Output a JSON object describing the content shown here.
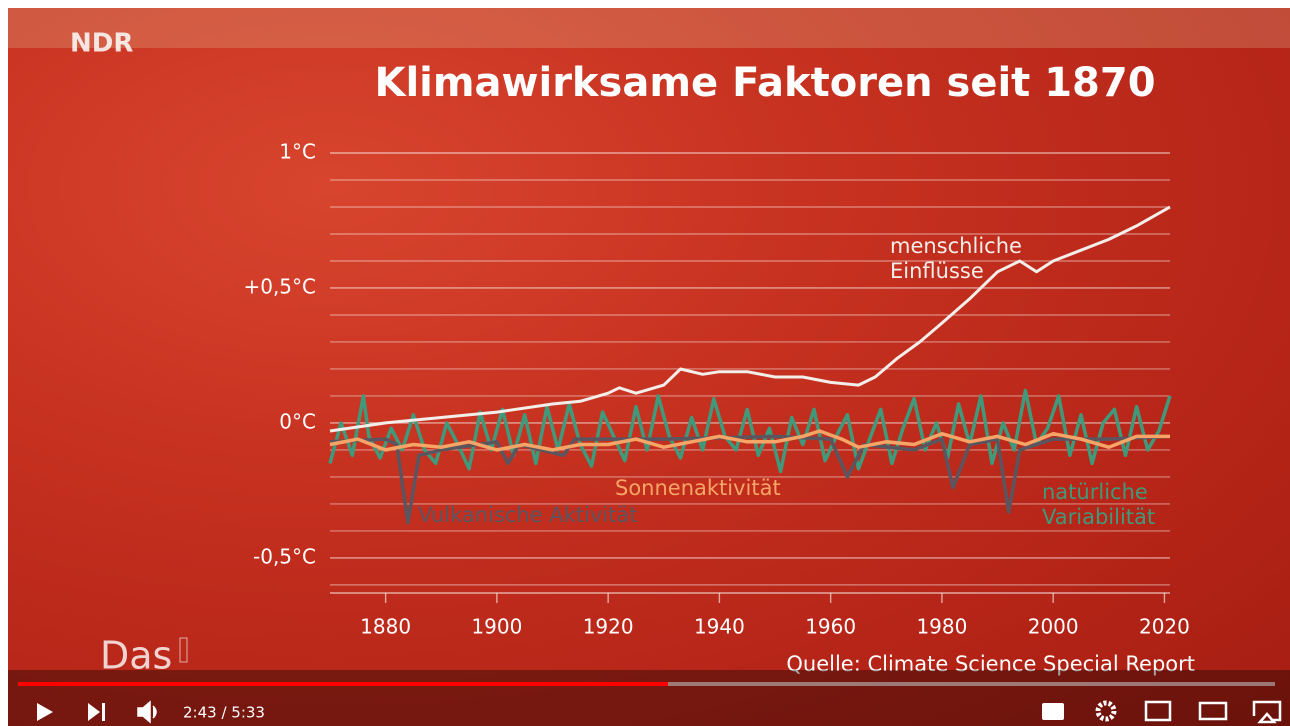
{
  "chart_data": {
    "type": "line",
    "title": "Klimawirksame Faktoren seit 1870",
    "source": "Quelle: Climate Science Special Report",
    "xlim": [
      1870,
      2021
    ],
    "xticks": [
      1880,
      1900,
      1920,
      1940,
      1960,
      1980,
      2000,
      2020
    ],
    "ylim": [
      -0.63,
      1.0
    ],
    "yticks": [
      {
        "value": -0.5,
        "label": "-0,5°C"
      },
      {
        "value": 0,
        "label": "0°C"
      },
      {
        "value": 0.5,
        "label": "+0,5°C"
      },
      {
        "value": 1,
        "label": "1°C"
      }
    ],
    "minor_yticks": [
      -0.6,
      -0.4,
      -0.3,
      -0.2,
      -0.1,
      0.1,
      0.2,
      0.3,
      0.4,
      0.6,
      0.7,
      0.8,
      0.9
    ],
    "grid": true,
    "series": [
      {
        "name": "natürliche\nVariabilität",
        "color": "#3f9a7c",
        "x": [
          1870,
          1872,
          1874,
          1876,
          1877,
          1879,
          1881,
          1883,
          1885,
          1887,
          1889,
          1891,
          1893,
          1895,
          1897,
          1899,
          1901,
          1903,
          1905,
          1907,
          1909,
          1911,
          1913,
          1915,
          1917,
          1919,
          1921,
          1923,
          1925,
          1927,
          1929,
          1931,
          1933,
          1935,
          1937,
          1939,
          1941,
          1943,
          1945,
          1947,
          1949,
          1951,
          1953,
          1955,
          1957,
          1959,
          1961,
          1963,
          1965,
          1967,
          1969,
          1971,
          1973,
          1975,
          1977,
          1979,
          1981,
          1983,
          1985,
          1987,
          1989,
          1991,
          1993,
          1995,
          1997,
          1999,
          2001,
          2003,
          2005,
          2007,
          2009,
          2011,
          2013,
          2015,
          2017,
          2019,
          2021
        ],
        "values": [
          -0.15,
          0.0,
          -0.12,
          0.1,
          -0.05,
          -0.13,
          -0.02,
          -0.1,
          0.03,
          -0.1,
          -0.15,
          0.0,
          -0.08,
          -0.17,
          0.04,
          -0.1,
          0.05,
          -0.12,
          0.03,
          -0.15,
          0.06,
          -0.1,
          0.07,
          -0.08,
          -0.16,
          0.04,
          -0.05,
          -0.14,
          0.06,
          -0.1,
          0.1,
          -0.05,
          -0.13,
          0.02,
          -0.1,
          0.09,
          -0.05,
          -0.1,
          0.05,
          -0.12,
          -0.02,
          -0.18,
          0.02,
          -0.08,
          0.05,
          -0.14,
          -0.05,
          0.03,
          -0.17,
          -0.06,
          0.05,
          -0.15,
          -0.02,
          0.09,
          -0.1,
          0.0,
          -0.13,
          0.07,
          -0.08,
          0.1,
          -0.15,
          0.0,
          -0.1,
          0.12,
          -0.08,
          -0.02,
          0.1,
          -0.12,
          0.03,
          -0.15,
          0.0,
          0.05,
          -0.12,
          0.06,
          -0.1,
          -0.03,
          0.1
        ]
      },
      {
        "name": "Vulkanische Aktivität",
        "color": "#5b5560",
        "x": [
          1870,
          1880,
          1882,
          1884,
          1886,
          1890,
          1900,
          1902,
          1904,
          1912,
          1914,
          1930,
          1950,
          1960,
          1963,
          1966,
          1975,
          1980,
          1982,
          1985,
          1990,
          1992,
          1994,
          2000,
          2010,
          2021
        ],
        "values": [
          -0.07,
          -0.06,
          -0.08,
          -0.37,
          -0.12,
          -0.1,
          -0.07,
          -0.15,
          -0.08,
          -0.12,
          -0.06,
          -0.06,
          -0.05,
          -0.06,
          -0.2,
          -0.08,
          -0.1,
          -0.06,
          -0.24,
          -0.08,
          -0.06,
          -0.33,
          -0.1,
          -0.06,
          -0.06,
          -0.05
        ]
      },
      {
        "name": "Sonnenaktivität",
        "color": "#f7a566",
        "x": [
          1870,
          1875,
          1880,
          1885,
          1890,
          1895,
          1900,
          1905,
          1910,
          1915,
          1920,
          1925,
          1930,
          1935,
          1940,
          1945,
          1950,
          1955,
          1958,
          1962,
          1965,
          1970,
          1975,
          1980,
          1985,
          1990,
          1995,
          2000,
          2005,
          2010,
          2015,
          2021
        ],
        "values": [
          -0.08,
          -0.06,
          -0.1,
          -0.08,
          -0.09,
          -0.07,
          -0.1,
          -0.08,
          -0.1,
          -0.08,
          -0.08,
          -0.06,
          -0.09,
          -0.07,
          -0.05,
          -0.07,
          -0.07,
          -0.05,
          -0.03,
          -0.06,
          -0.09,
          -0.07,
          -0.08,
          -0.04,
          -0.07,
          -0.05,
          -0.08,
          -0.04,
          -0.06,
          -0.09,
          -0.05,
          -0.05
        ]
      },
      {
        "name": "menschliche\nEinflüsse",
        "color": "#f4eeea",
        "x": [
          1870,
          1880,
          1890,
          1900,
          1910,
          1915,
          1920,
          1922,
          1925,
          1930,
          1933,
          1937,
          1940,
          1945,
          1950,
          1955,
          1960,
          1965,
          1968,
          1972,
          1976,
          1980,
          1985,
          1990,
          1994,
          1997,
          2000,
          2005,
          2010,
          2015,
          2021
        ],
        "values": [
          -0.03,
          0.0,
          0.02,
          0.04,
          0.07,
          0.08,
          0.11,
          0.13,
          0.11,
          0.14,
          0.2,
          0.18,
          0.19,
          0.19,
          0.17,
          0.17,
          0.15,
          0.14,
          0.17,
          0.24,
          0.3,
          0.37,
          0.46,
          0.56,
          0.6,
          0.56,
          0.6,
          0.64,
          0.68,
          0.73,
          0.8
        ]
      }
    ]
  },
  "overlay": {
    "channel_logo": "NDR",
    "program_logo": "Das"
  },
  "player": {
    "time": "2:43 / 5:33"
  }
}
